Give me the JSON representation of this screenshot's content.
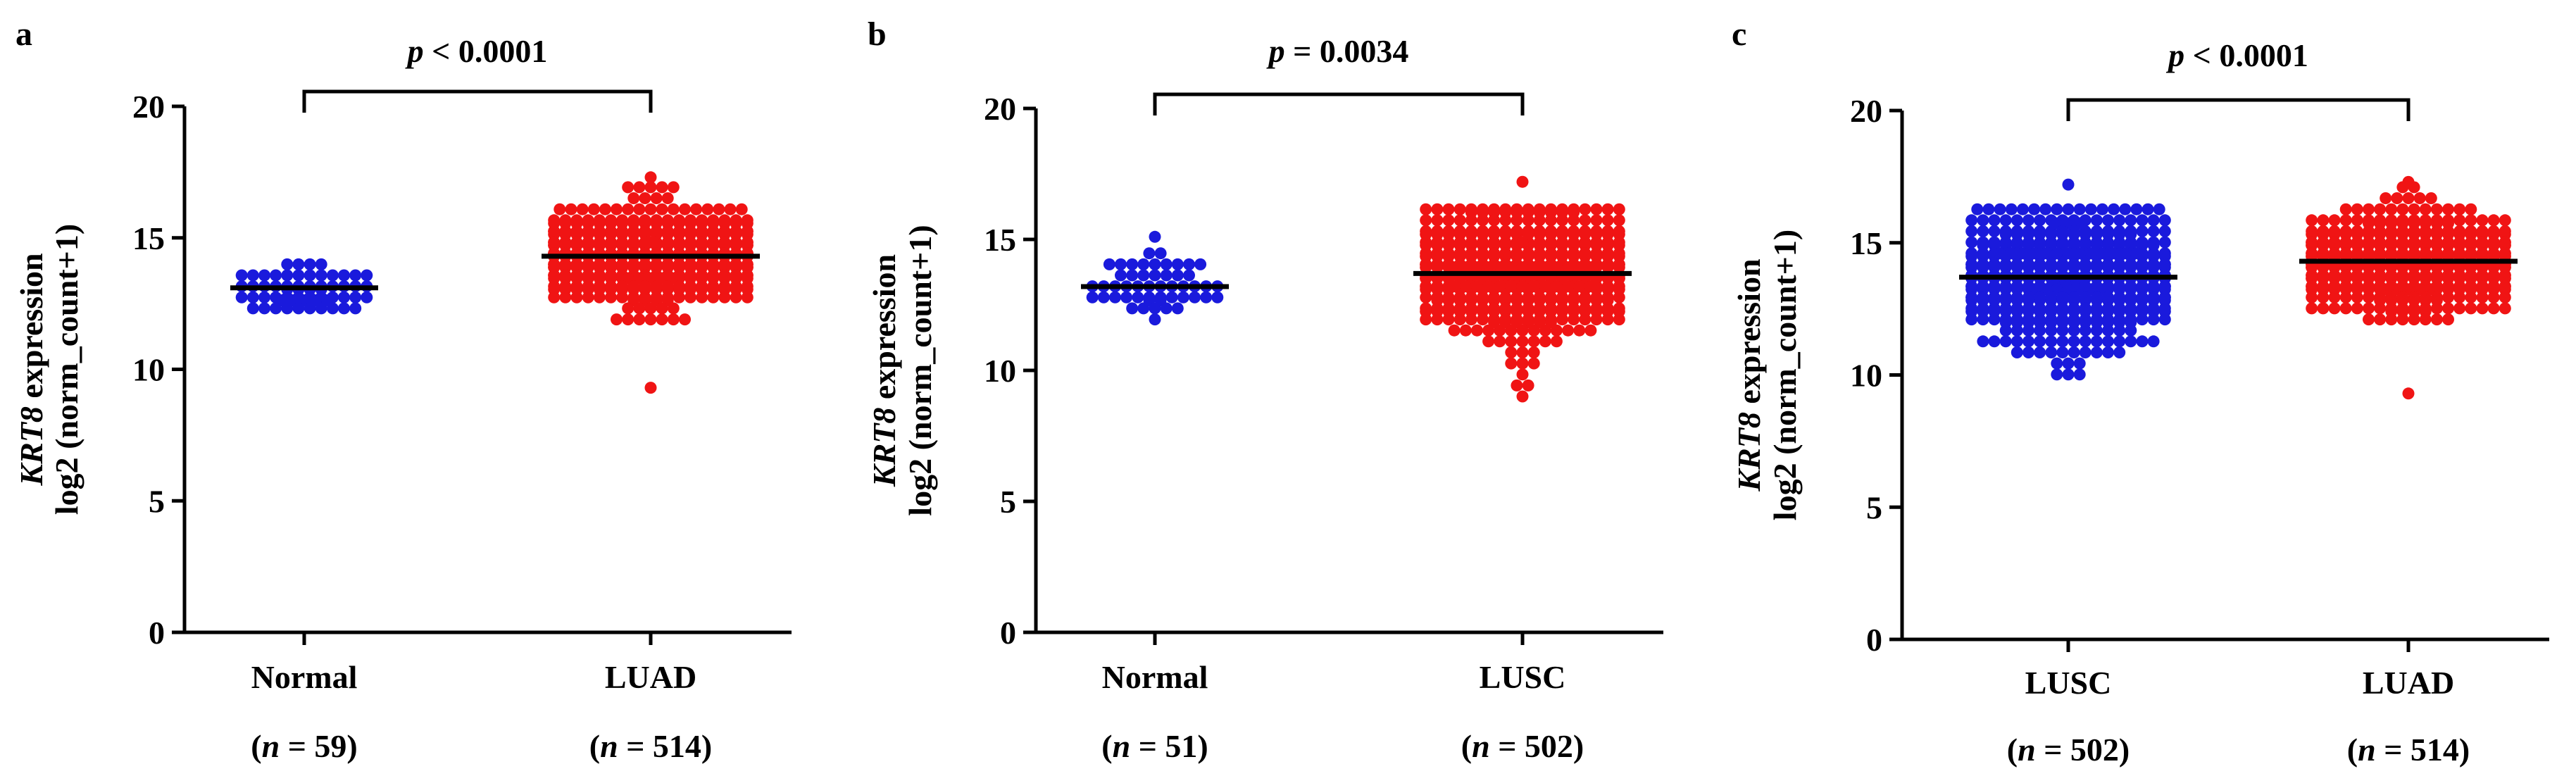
{
  "chart_data": [
    {
      "panel": "a",
      "type": "scatter",
      "subtype": "beeswarm",
      "title": "",
      "ylabel_gene": "KRT8",
      "ylabel_suffix": " expression",
      "ylabel_line2": "log2 (norm_count+1)",
      "ylim": [
        0,
        20
      ],
      "yticks": [
        0,
        5,
        10,
        15,
        20
      ],
      "significance": {
        "p_symbol": "p",
        "op": " < ",
        "value": "0.0001"
      },
      "groups": [
        {
          "name": "Normal",
          "n": 59,
          "n_label": "(n = 59)",
          "color": "#1a1adc",
          "mean": 13.1,
          "spread": 0.55,
          "min": 11.9,
          "max": 14.6,
          "outliers": []
        },
        {
          "name": "LUAD",
          "n": 514,
          "n_label": "(n = 514)",
          "color": "#f01414",
          "mean": 14.3,
          "spread": 0.95,
          "min": 11.9,
          "max": 16.9,
          "outliers": [
            17.3,
            9.3
          ]
        }
      ]
    },
    {
      "panel": "b",
      "type": "scatter",
      "subtype": "beeswarm",
      "title": "",
      "ylabel_gene": "KRT8",
      "ylabel_suffix": " expression",
      "ylabel_line2": "log2 (norm_count+1)",
      "ylim": [
        0,
        20
      ],
      "yticks": [
        0,
        5,
        10,
        15,
        20
      ],
      "significance": {
        "p_symbol": "p",
        "op": " = ",
        "value": "0.0034"
      },
      "groups": [
        {
          "name": "Normal",
          "n": 51,
          "n_label": "(n = 51)",
          "color": "#1a1adc",
          "mean": 13.2,
          "spread": 0.65,
          "min": 11.7,
          "max": 14.8,
          "outliers": [
            15.1
          ]
        },
        {
          "name": "LUSC",
          "n": 502,
          "n_label": "(n = 502)",
          "color": "#f01414",
          "mean": 13.7,
          "spread": 1.35,
          "min": 9.1,
          "max": 16.2,
          "outliers": [
            17.2
          ]
        }
      ]
    },
    {
      "panel": "c",
      "type": "scatter",
      "subtype": "beeswarm",
      "title": "",
      "ylabel_gene": "KRT8",
      "ylabel_suffix": " expression",
      "ylabel_line2": "log2 (norm_count+1)",
      "ylim": [
        0,
        20
      ],
      "yticks": [
        0,
        5,
        10,
        15,
        20
      ],
      "significance": {
        "p_symbol": "p",
        "op": " < ",
        "value": "0.0001"
      },
      "groups": [
        {
          "name": "LUSC",
          "n": 502,
          "n_label": "(n = 502)",
          "color": "#1a1adc",
          "mean": 13.7,
          "spread": 1.35,
          "min": 9.1,
          "max": 16.2,
          "outliers": [
            17.2
          ]
        },
        {
          "name": "LUAD",
          "n": 514,
          "n_label": "(n = 514)",
          "color": "#f01414",
          "mean": 14.3,
          "spread": 0.95,
          "min": 11.9,
          "max": 16.9,
          "outliers": [
            17.3,
            9.3
          ]
        }
      ]
    }
  ]
}
